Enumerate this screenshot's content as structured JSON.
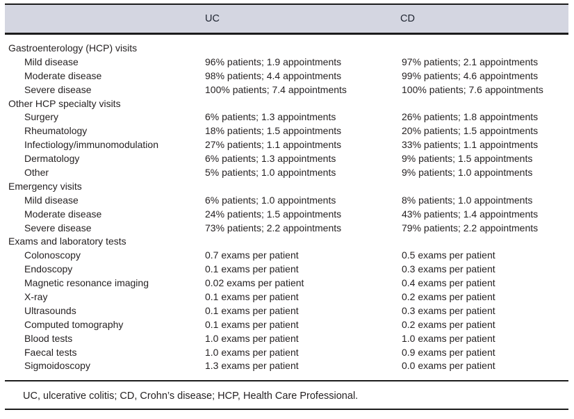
{
  "table": {
    "columns": [
      "UC",
      "CD"
    ],
    "footnote": "UC, ulcerative colitis; CD, Crohn’s disease; HCP, Health Care Professional.",
    "rows": [
      {
        "label": "Gastroenterology (HCP) visits",
        "section": true,
        "uc": "",
        "cd": ""
      },
      {
        "label": "Mild disease",
        "section": false,
        "uc": "96% patients; 1.9 appointments",
        "cd": "97% patients; 2.1 appointments"
      },
      {
        "label": "Moderate disease",
        "section": false,
        "uc": "98% patients; 4.4 appointments",
        "cd": "99% patients; 4.6 appointments"
      },
      {
        "label": "Severe disease",
        "section": false,
        "uc": "100% patients; 7.4 appointments",
        "cd": "100% patients; 7.6 appointments"
      },
      {
        "label": "Other HCP specialty visits",
        "section": true,
        "uc": "",
        "cd": ""
      },
      {
        "label": "Surgery",
        "section": false,
        "uc": "6% patients; 1.3 appointments",
        "cd": "26% patients; 1.8 appointments"
      },
      {
        "label": "Rheumatology",
        "section": false,
        "uc": "18% patients; 1.5 appointments",
        "cd": "20% patients; 1.5 appointments"
      },
      {
        "label": "Infectiology/immunomodulation",
        "section": false,
        "uc": "27% patients; 1.1 appointments",
        "cd": "33% patients; 1.1 appointments"
      },
      {
        "label": "Dermatology",
        "section": false,
        "uc": "6% patients; 1.3 appointments",
        "cd": "9% patients; 1.5 appointments"
      },
      {
        "label": "Other",
        "section": false,
        "uc": "5% patients; 1.0 appointments",
        "cd": "9% patients; 1.0 appointments"
      },
      {
        "label": "Emergency visits",
        "section": true,
        "uc": "",
        "cd": ""
      },
      {
        "label": "Mild disease",
        "section": false,
        "uc": "6% patients; 1.0 appointments",
        "cd": "8% patients; 1.0 appointments"
      },
      {
        "label": "Moderate disease",
        "section": false,
        "uc": "24% patients; 1.5 appointments",
        "cd": "43% patients; 1.4 appointments"
      },
      {
        "label": "Severe disease",
        "section": false,
        "uc": "73% patients; 2.2 appointments",
        "cd": "79% patients; 2.2 appointments"
      },
      {
        "label": "Exams and laboratory tests",
        "section": true,
        "uc": "",
        "cd": ""
      },
      {
        "label": "Colonoscopy",
        "section": false,
        "uc": "0.7 exams per patient",
        "cd": "0.5 exams per patient"
      },
      {
        "label": "Endoscopy",
        "section": false,
        "uc": "0.1 exams per patient",
        "cd": "0.3 exams per patient"
      },
      {
        "label": "Magnetic resonance imaging",
        "section": false,
        "uc": "0.02 exams per patient",
        "cd": "0.4 exams per patient"
      },
      {
        "label": "X-ray",
        "section": false,
        "uc": "0.1 exams per patient",
        "cd": "0.2 exams per patient"
      },
      {
        "label": "Ultrasounds",
        "section": false,
        "uc": "0.1 exams per patient",
        "cd": "0.3 exams per patient"
      },
      {
        "label": "Computed tomography",
        "section": false,
        "uc": "0.1 exams per patient",
        "cd": "0.2 exams per patient"
      },
      {
        "label": "Blood tests",
        "section": false,
        "uc": "1.0 exams per patient",
        "cd": "1.0 exams per patient"
      },
      {
        "label": "Faecal tests",
        "section": false,
        "uc": "1.0 exams per patient",
        "cd": "0.9 exams per patient"
      },
      {
        "label": "Sigmoidoscopy",
        "section": false,
        "uc": "1.3 exams per patient",
        "cd": "0.0 exams per patient"
      }
    ]
  },
  "colors": {
    "header_bg": "#d4d6e1",
    "rule": "#1c1c1c",
    "text": "#231f20"
  }
}
